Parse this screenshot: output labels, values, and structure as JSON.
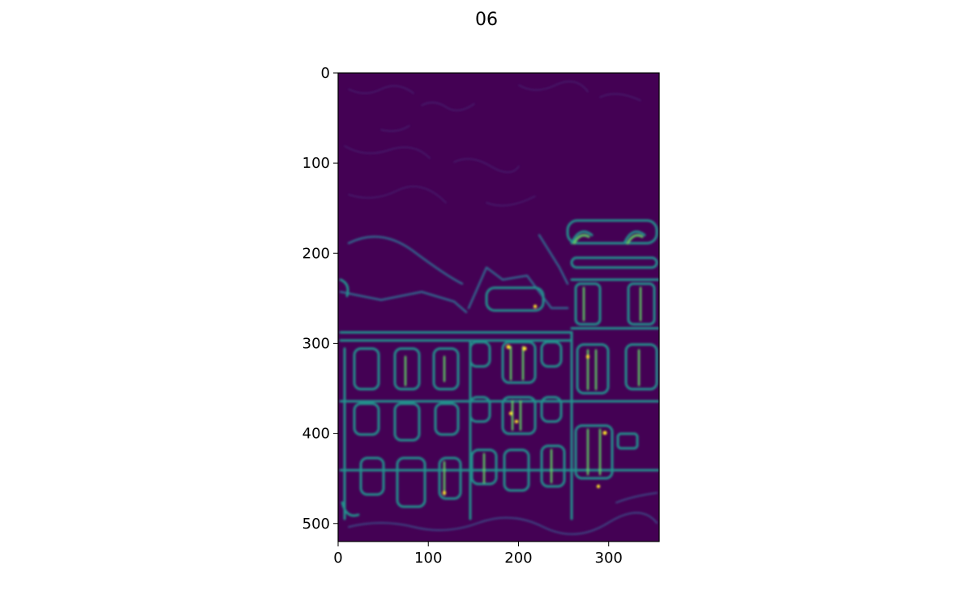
{
  "figure": {
    "title": "06"
  },
  "chart_data": {
    "type": "heatmap",
    "title": "06",
    "xlabel": "",
    "ylabel": "",
    "xlim": [
      0,
      356
    ],
    "ylim": [
      520,
      0
    ],
    "x_ticks": [
      0,
      100,
      200,
      300
    ],
    "x_tick_labels": [
      "0",
      "100",
      "200",
      "300"
    ],
    "y_ticks": [
      0,
      100,
      200,
      300,
      400,
      500
    ],
    "y_tick_labels": [
      "0",
      "100",
      "200",
      "300",
      "400",
      "500"
    ],
    "colormap": "viridis",
    "background_color": "#440154",
    "edge_colors": [
      "#3b528b",
      "#21918c",
      "#5ec962",
      "#fde725"
    ],
    "grid": false,
    "legend": "none"
  }
}
